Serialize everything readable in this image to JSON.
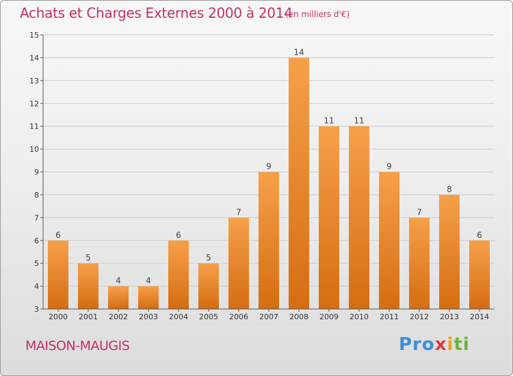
{
  "header": {
    "title": "Achats et Charges Externes 2000 à 2014",
    "subtitle": "(en milliers d'€)"
  },
  "footer": {
    "commune": "MAISON-MAUGIS",
    "logo_text": "Proxiti"
  },
  "colors": {
    "title": "#c0306a",
    "bar_top": "#f6a04a",
    "bar_bottom": "#d56d12",
    "grid": "#cccccc"
  },
  "chart_data": {
    "type": "bar",
    "title": "Achats et Charges Externes 2000 à 2014",
    "subtitle": "(en milliers d'€)",
    "xlabel": "",
    "ylabel": "",
    "categories": [
      "2000",
      "2001",
      "2002",
      "2003",
      "2004",
      "2005",
      "2006",
      "2007",
      "2008",
      "2009",
      "2010",
      "2011",
      "2012",
      "2013",
      "2014"
    ],
    "values": [
      6,
      5,
      4,
      4,
      6,
      5,
      7,
      9,
      14,
      11,
      11,
      9,
      7,
      8,
      6
    ],
    "ylim": [
      3,
      15
    ],
    "yticks": [
      3,
      4,
      5,
      6,
      7,
      8,
      9,
      10,
      11,
      12,
      13,
      14,
      15
    ],
    "grid": true,
    "data_labels": true
  }
}
